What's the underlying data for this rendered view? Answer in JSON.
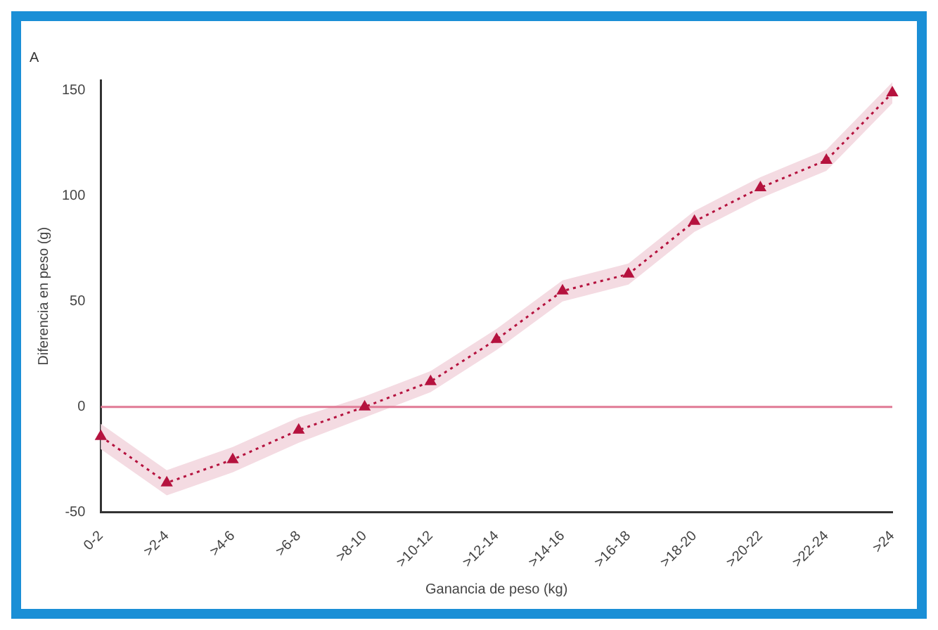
{
  "chart_data": {
    "type": "line",
    "title": "A",
    "xlabel": "Ganancia de peso (kg)",
    "ylabel": "Diferencia en peso (g)",
    "categories": [
      "0-2",
      ">2-4",
      ">4-6",
      ">6-8",
      ">8-10",
      ">10-12",
      ">12-14",
      ">14-16",
      ">16-18",
      ">18-20",
      ">20-22",
      ">22-24",
      ">24"
    ],
    "series": [
      {
        "color": "#b5123e",
        "values": [
          -14,
          -36,
          -25,
          -11,
          0,
          12,
          32,
          55,
          63,
          88,
          104,
          117,
          149
        ],
        "lower": [
          -20,
          -42,
          -31,
          -17,
          -5,
          7,
          27,
          50,
          58,
          83,
          99,
          112,
          144
        ],
        "upper": [
          -8,
          -30,
          -19,
          -5,
          5,
          17,
          37,
          60,
          68,
          93,
          109,
          122,
          154
        ]
      }
    ],
    "ylim": [
      -50,
      155
    ],
    "yticks": [
      -50,
      0,
      50,
      100,
      150
    ],
    "ref_lines": [
      {
        "axis": "y",
        "value": 0,
        "color": "#e07a95"
      }
    ],
    "marker": "triangle",
    "line_style": "dotted",
    "grid": false,
    "legend": false
  }
}
